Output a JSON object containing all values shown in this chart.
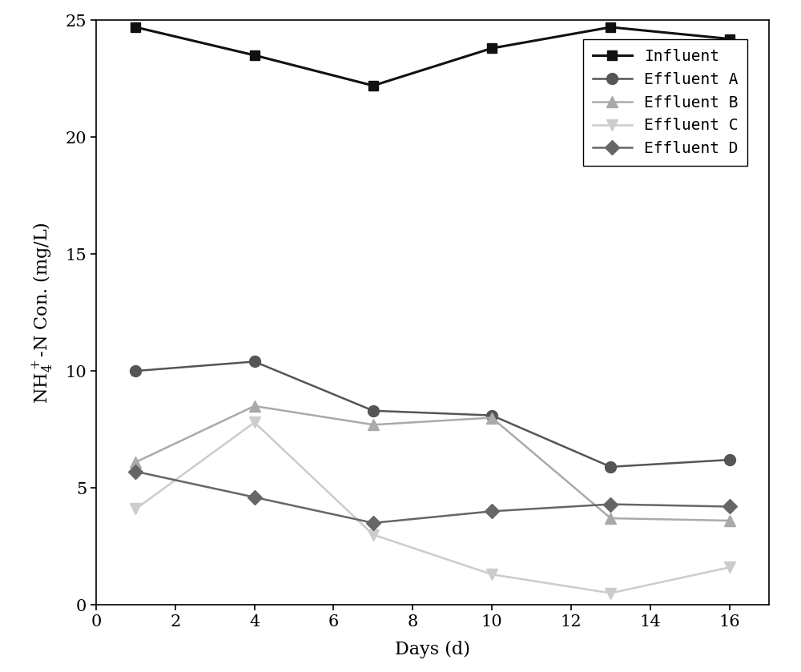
{
  "days": [
    1,
    4,
    7,
    10,
    13,
    16
  ],
  "influent": [
    24.7,
    23.5,
    22.2,
    23.8,
    24.7,
    24.2
  ],
  "effluent_a": [
    10.0,
    10.4,
    8.3,
    8.1,
    5.9,
    6.2
  ],
  "effluent_b": [
    6.1,
    8.5,
    7.7,
    8.0,
    3.7,
    3.6
  ],
  "effluent_c": [
    4.1,
    7.8,
    3.0,
    1.3,
    0.5,
    1.6
  ],
  "effluent_d": [
    5.7,
    4.6,
    3.5,
    4.0,
    4.3,
    4.2
  ],
  "colors": {
    "influent": "#111111",
    "effluent_a": "#555555",
    "effluent_b": "#aaaaaa",
    "effluent_c": "#cccccc",
    "effluent_d": "#666666"
  },
  "xlabel": "Days (d)",
  "ylabel": "$\\mathrm{NH_4^+}$-N Con. (mg/L)",
  "xlim": [
    0,
    17
  ],
  "ylim": [
    0,
    25
  ],
  "xticks": [
    0,
    2,
    4,
    6,
    8,
    10,
    12,
    14,
    16
  ],
  "yticks": [
    0,
    5,
    10,
    15,
    20,
    25
  ],
  "legend_labels": [
    "Influent",
    "Effluent A",
    "Effluent B",
    "Effluent C",
    "Effluent D"
  ],
  "figsize": [
    10.0,
    8.39
  ],
  "dpi": 100
}
